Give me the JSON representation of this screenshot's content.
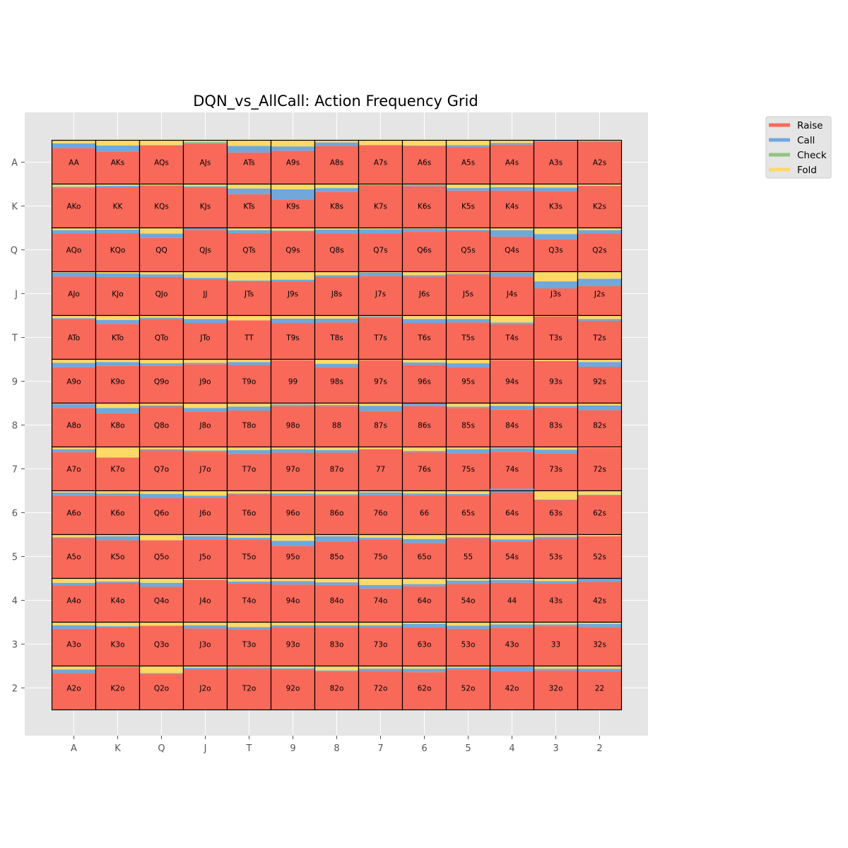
{
  "chart_data": {
    "type": "heatmap",
    "subtype": "stacked-bar-grid",
    "title": "DQN_vs_AllCall: Action Frequency Grid",
    "xlabel": "",
    "ylabel": "",
    "ranks": [
      "A",
      "K",
      "Q",
      "J",
      "T",
      "9",
      "8",
      "7",
      "6",
      "5",
      "4",
      "3",
      "2"
    ],
    "x_tick_labels": [
      "A",
      "K",
      "Q",
      "J",
      "T",
      "9",
      "8",
      "7",
      "6",
      "5",
      "4",
      "3",
      "2"
    ],
    "y_tick_labels": [
      "A",
      "K",
      "Q",
      "J",
      "T",
      "9",
      "8",
      "7",
      "6",
      "5",
      "4",
      "3",
      "2"
    ],
    "grid": true,
    "legend_position": "upper-right-outside",
    "legend": [
      {
        "name": "Raise",
        "color": "#f8695a"
      },
      {
        "name": "Call",
        "color": "#6fa8dc"
      },
      {
        "name": "Check",
        "color": "#93c47d"
      },
      {
        "name": "Fold",
        "color": "#ffd966"
      }
    ],
    "hands": [
      [
        "AA",
        "AKs",
        "AQs",
        "AJs",
        "ATs",
        "A9s",
        "A8s",
        "A7s",
        "A6s",
        "A5s",
        "A4s",
        "A3s",
        "A2s"
      ],
      [
        "AKo",
        "KK",
        "KQs",
        "KJs",
        "KTs",
        "K9s",
        "K8s",
        "K7s",
        "K6s",
        "K5s",
        "K4s",
        "K3s",
        "K2s"
      ],
      [
        "AQo",
        "KQo",
        "QQ",
        "QJs",
        "QTs",
        "Q9s",
        "Q8s",
        "Q7s",
        "Q6s",
        "Q5s",
        "Q4s",
        "Q3s",
        "Q2s"
      ],
      [
        "AJo",
        "KJo",
        "QJo",
        "JJ",
        "JTs",
        "J9s",
        "J8s",
        "J7s",
        "J6s",
        "J5s",
        "J4s",
        "J3s",
        "J2s"
      ],
      [
        "ATo",
        "KTo",
        "QTo",
        "JTo",
        "TT",
        "T9s",
        "T8s",
        "T7s",
        "T6s",
        "T5s",
        "T4s",
        "T3s",
        "T2s"
      ],
      [
        "A9o",
        "K9o",
        "Q9o",
        "J9o",
        "T9o",
        "99",
        "98s",
        "97s",
        "96s",
        "95s",
        "94s",
        "93s",
        "92s"
      ],
      [
        "A8o",
        "K8o",
        "Q8o",
        "J8o",
        "T8o",
        "98o",
        "88",
        "87s",
        "86s",
        "85s",
        "84s",
        "83s",
        "82s"
      ],
      [
        "A7o",
        "K7o",
        "Q7o",
        "J7o",
        "T7o",
        "97o",
        "87o",
        "77",
        "76s",
        "75s",
        "74s",
        "73s",
        "72s"
      ],
      [
        "A6o",
        "K6o",
        "Q6o",
        "J6o",
        "T6o",
        "96o",
        "86o",
        "76o",
        "66",
        "65s",
        "64s",
        "63s",
        "62s"
      ],
      [
        "A5o",
        "K5o",
        "Q5o",
        "J5o",
        "T5o",
        "95o",
        "85o",
        "75o",
        "65o",
        "55",
        "54s",
        "53s",
        "52s"
      ],
      [
        "A4o",
        "K4o",
        "Q4o",
        "J4o",
        "T4o",
        "94o",
        "84o",
        "74o",
        "64o",
        "54o",
        "44",
        "43s",
        "42s"
      ],
      [
        "A3o",
        "K3o",
        "Q3o",
        "J3o",
        "T3o",
        "93o",
        "83o",
        "73o",
        "63o",
        "53o",
        "43o",
        "33",
        "32s"
      ],
      [
        "A2o",
        "K2o",
        "Q2o",
        "J2o",
        "T2o",
        "92o",
        "82o",
        "72o",
        "62o",
        "52o",
        "42o",
        "32o",
        "22"
      ]
    ],
    "frequencies_raise": [
      [
        0.82,
        0.74,
        0.88,
        0.92,
        0.72,
        0.76,
        0.87,
        0.89,
        0.87,
        0.85,
        0.9,
        0.97,
        0.96
      ],
      [
        0.91,
        0.93,
        0.97,
        0.92,
        0.77,
        0.65,
        0.82,
        0.98,
        0.95,
        0.85,
        0.85,
        0.84,
        0.96
      ],
      [
        0.87,
        0.88,
        0.77,
        0.95,
        0.88,
        0.93,
        0.87,
        0.87,
        0.91,
        0.93,
        0.8,
        0.74,
        0.87
      ],
      [
        0.89,
        0.88,
        0.88,
        0.83,
        0.78,
        0.78,
        0.88,
        0.9,
        0.89,
        0.94,
        0.89,
        0.62,
        0.67
      ],
      [
        0.92,
        0.81,
        0.92,
        0.83,
        0.89,
        0.83,
        0.84,
        0.95,
        0.83,
        0.84,
        0.8,
        0.98,
        0.88
      ],
      [
        0.82,
        0.85,
        0.85,
        0.89,
        0.87,
        0.98,
        0.82,
        0.98,
        0.87,
        0.82,
        0.98,
        0.96,
        0.83
      ],
      [
        0.89,
        0.77,
        0.92,
        0.81,
        0.83,
        0.93,
        0.93,
        0.82,
        0.93,
        0.89,
        0.85,
        0.9,
        0.84
      ],
      [
        0.88,
        0.76,
        0.92,
        0.89,
        0.84,
        0.87,
        0.87,
        0.95,
        0.88,
        0.86,
        0.89,
        0.85,
        0.98
      ],
      [
        0.88,
        0.88,
        0.83,
        0.84,
        0.92,
        0.89,
        0.89,
        0.9,
        0.9,
        0.9,
        0.96,
        0.79,
        0.9
      ],
      [
        0.92,
        0.87,
        0.87,
        0.88,
        0.89,
        0.74,
        0.84,
        0.88,
        0.81,
        0.92,
        0.84,
        0.91,
        0.96
      ],
      [
        0.84,
        0.9,
        0.81,
        0.97,
        0.89,
        0.86,
        0.85,
        0.77,
        0.82,
        0.87,
        0.9,
        0.88,
        0.92
      ],
      [
        0.85,
        0.88,
        0.92,
        0.86,
        0.84,
        0.89,
        0.89,
        0.89,
        0.88,
        0.85,
        0.87,
        0.91,
        0.89
      ],
      [
        0.84,
        0.98,
        0.82,
        0.93,
        0.94,
        0.92,
        0.87,
        0.89,
        0.86,
        0.92,
        0.88,
        0.9,
        0.88
      ]
    ],
    "frequencies_call": [
      [
        0.11,
        0.14,
        0.01,
        0.02,
        0.15,
        0.1,
        0.08,
        0.0,
        0.01,
        0.04,
        0.04,
        0.02,
        0.02
      ],
      [
        0.03,
        0.03,
        0.0,
        0.03,
        0.13,
        0.23,
        0.09,
        0.0,
        0.03,
        0.06,
        0.08,
        0.08,
        0.0
      ],
      [
        0.08,
        0.08,
        0.1,
        0.04,
        0.07,
        0.01,
        0.09,
        0.1,
        0.07,
        0.03,
        0.15,
        0.12,
        0.08
      ],
      [
        0.09,
        0.08,
        0.06,
        0.03,
        0.02,
        0.04,
        0.04,
        0.08,
        0.03,
        0.02,
        0.09,
        0.16,
        0.17
      ],
      [
        0.02,
        0.09,
        0.03,
        0.09,
        0.0,
        0.1,
        0.09,
        0.03,
        0.09,
        0.08,
        0.04,
        0.0,
        0.04
      ],
      [
        0.1,
        0.09,
        0.06,
        0.03,
        0.07,
        0.0,
        0.08,
        0.0,
        0.06,
        0.09,
        0.0,
        0.0,
        0.11
      ],
      [
        0.09,
        0.12,
        0.03,
        0.08,
        0.09,
        0.04,
        0.03,
        0.12,
        0.06,
        0.03,
        0.09,
        0.04,
        0.11
      ],
      [
        0.07,
        0.0,
        0.03,
        0.03,
        0.09,
        0.08,
        0.06,
        0.0,
        0.03,
        0.09,
        0.08,
        0.09,
        0.0
      ],
      [
        0.08,
        0.06,
        0.1,
        0.05,
        0.02,
        0.05,
        0.03,
        0.06,
        0.04,
        0.03,
        0.09,
        0.01,
        0.01
      ],
      [
        0.02,
        0.09,
        0.0,
        0.08,
        0.04,
        0.12,
        0.12,
        0.05,
        0.09,
        0.02,
        0.05,
        0.04,
        0.0
      ],
      [
        0.06,
        0.03,
        0.09,
        0.0,
        0.04,
        0.08,
        0.06,
        0.08,
        0.05,
        0.08,
        0.06,
        0.06,
        0.07
      ],
      [
        0.08,
        0.03,
        0.0,
        0.07,
        0.05,
        0.04,
        0.04,
        0.04,
        0.08,
        0.07,
        0.08,
        0.04,
        0.07
      ],
      [
        0.08,
        0.0,
        0.02,
        0.03,
        0.03,
        0.03,
        0.03,
        0.05,
        0.08,
        0.04,
        0.1,
        0.04,
        0.06
      ]
    ],
    "frequencies_check": [
      [
        0.0,
        0.0,
        0.0,
        0.02,
        0.0,
        0.0,
        0.0,
        0.0,
        0.0,
        0.0,
        0.0,
        0.0,
        0.0
      ],
      [
        0.0,
        0.0,
        0.0,
        0.0,
        0.0,
        0.0,
        0.0,
        0.0,
        0.0,
        0.0,
        0.0,
        0.0,
        0.0
      ],
      [
        0.0,
        0.0,
        0.0,
        0.0,
        0.0,
        0.0,
        0.0,
        0.0,
        0.0,
        0.0,
        0.0,
        0.0,
        0.0
      ],
      [
        0.0,
        0.0,
        0.0,
        0.0,
        0.0,
        0.0,
        0.0,
        0.0,
        0.0,
        0.0,
        0.0,
        0.0,
        0.0
      ],
      [
        0.0,
        0.0,
        0.0,
        0.0,
        0.0,
        0.0,
        0.0,
        0.0,
        0.0,
        0.0,
        0.0,
        0.0,
        0.0
      ],
      [
        0.0,
        0.0,
        0.0,
        0.0,
        0.0,
        0.0,
        0.0,
        0.0,
        0.0,
        0.0,
        0.0,
        0.0,
        0.0
      ],
      [
        0.0,
        0.0,
        0.0,
        0.0,
        0.0,
        0.0,
        0.0,
        0.0,
        0.0,
        0.0,
        0.0,
        0.0,
        0.0
      ],
      [
        0.0,
        0.0,
        0.0,
        0.0,
        0.0,
        0.0,
        0.0,
        0.0,
        0.0,
        0.0,
        0.0,
        0.0,
        0.0
      ],
      [
        0.0,
        0.0,
        0.0,
        0.0,
        0.0,
        0.0,
        0.0,
        0.0,
        0.0,
        0.0,
        0.0,
        0.0,
        0.0
      ],
      [
        0.0,
        0.0,
        0.0,
        0.0,
        0.0,
        0.0,
        0.0,
        0.0,
        0.0,
        0.0,
        0.0,
        0.0,
        0.0
      ],
      [
        0.0,
        0.0,
        0.0,
        0.0,
        0.0,
        0.0,
        0.0,
        0.0,
        0.0,
        0.0,
        0.0,
        0.0,
        0.0
      ],
      [
        0.0,
        0.0,
        0.0,
        0.0,
        0.0,
        0.0,
        0.0,
        0.0,
        0.0,
        0.0,
        0.0,
        0.0,
        0.0
      ],
      [
        0.0,
        0.0,
        0.0,
        0.0,
        0.0,
        0.0,
        0.0,
        0.0,
        0.0,
        0.0,
        0.0,
        0.0,
        0.0
      ]
    ],
    "frequencies_fold": [
      [
        0.07,
        0.12,
        0.11,
        0.04,
        0.13,
        0.14,
        0.05,
        0.11,
        0.12,
        0.11,
        0.06,
        0.01,
        0.02
      ],
      [
        0.06,
        0.04,
        0.03,
        0.05,
        0.1,
        0.12,
        0.09,
        0.02,
        0.02,
        0.09,
        0.07,
        0.08,
        0.04
      ],
      [
        0.05,
        0.04,
        0.13,
        0.01,
        0.05,
        0.06,
        0.04,
        0.03,
        0.02,
        0.04,
        0.05,
        0.14,
        0.05
      ],
      [
        0.02,
        0.04,
        0.06,
        0.14,
        0.2,
        0.18,
        0.08,
        0.02,
        0.08,
        0.04,
        0.02,
        0.22,
        0.16
      ],
      [
        0.06,
        0.1,
        0.05,
        0.08,
        0.11,
        0.07,
        0.07,
        0.02,
        0.08,
        0.08,
        0.16,
        0.02,
        0.08
      ],
      [
        0.08,
        0.06,
        0.09,
        0.08,
        0.06,
        0.02,
        0.1,
        0.02,
        0.07,
        0.09,
        0.02,
        0.04,
        0.06
      ],
      [
        0.02,
        0.11,
        0.05,
        0.11,
        0.08,
        0.03,
        0.04,
        0.06,
        0.01,
        0.08,
        0.06,
        0.06,
        0.05
      ],
      [
        0.05,
        0.24,
        0.05,
        0.08,
        0.07,
        0.05,
        0.07,
        0.05,
        0.09,
        0.05,
        0.03,
        0.06,
        0.02
      ],
      [
        0.04,
        0.06,
        0.07,
        0.11,
        0.06,
        0.06,
        0.08,
        0.04,
        0.06,
        0.07,
        0.0,
        0.2,
        0.09
      ],
      [
        0.06,
        0.04,
        0.13,
        0.04,
        0.07,
        0.14,
        0.04,
        0.07,
        0.1,
        0.06,
        0.11,
        0.05,
        0.04
      ],
      [
        0.1,
        0.07,
        0.1,
        0.03,
        0.07,
        0.06,
        0.09,
        0.15,
        0.13,
        0.05,
        0.04,
        0.06,
        0.01
      ],
      [
        0.07,
        0.09,
        0.08,
        0.07,
        0.11,
        0.07,
        0.07,
        0.07,
        0.04,
        0.08,
        0.05,
        0.05,
        0.04
      ],
      [
        0.08,
        0.02,
        0.16,
        0.04,
        0.03,
        0.05,
        0.1,
        0.06,
        0.06,
        0.04,
        0.02,
        0.06,
        0.06
      ]
    ]
  }
}
